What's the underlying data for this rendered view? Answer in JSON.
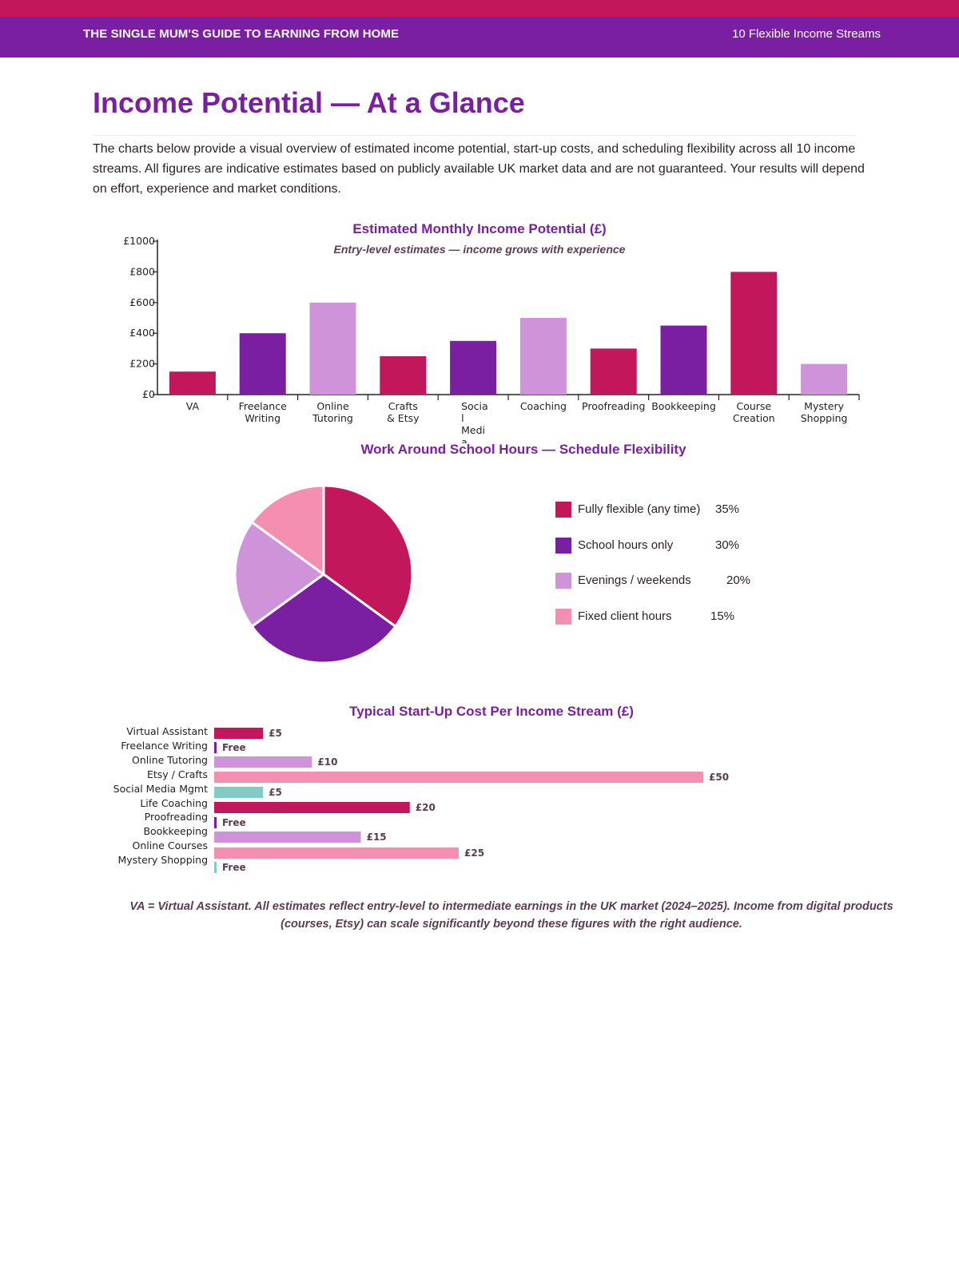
{
  "header": {
    "left_title": "THE SINGLE MUM'S GUIDE TO EARNING FROM HOME",
    "right_title": "10 Flexible Income Streams"
  },
  "page": {
    "title": "Income Potential — At a Glance",
    "intro": "The charts below provide a visual overview of estimated income potential, start-up costs, and scheduling flexibility across all 10 income streams. All figures are indicative estimates based on publicly available UK market data and are not guaranteed. Your results will depend on effort, experience and market conditions.",
    "footnote": "VA = Virtual Assistant. All estimates reflect entry-level to intermediate earnings in the UK market (2024–2025). Income from digital products (courses, Etsy) can scale significantly beyond these figures with the right audience."
  },
  "colors": {
    "crimson": "#c2185b",
    "purple": "#7b1fa2",
    "lilac": "#ce93d8",
    "pink": "#f48fb1",
    "teal": "#80cbc4"
  },
  "chart_data": [
    {
      "type": "bar",
      "title": "Estimated Monthly Income Potential (£)",
      "subtitle": "Entry-level estimates — income grows with experience",
      "categories": [
        "VA",
        "Freelance Writing",
        "Online Tutoring",
        "Crafts & Etsy",
        "Social Media",
        "Coaching",
        "Proofreading",
        "Bookkeeping",
        "Course Creation",
        "Mystery Shopping"
      ],
      "category_lines": [
        [
          "VA"
        ],
        [
          "Freelance",
          "Writing"
        ],
        [
          "Online",
          "Tutoring"
        ],
        [
          "Crafts",
          "& Etsy"
        ],
        [
          "Socia",
          "l",
          "Medi",
          "a"
        ],
        [
          "Coaching"
        ],
        [
          "Proofreading"
        ],
        [
          "Bookkeeping"
        ],
        [
          "Course",
          "Creation"
        ],
        [
          "Mystery",
          "Shopping"
        ]
      ],
      "values": [
        150,
        400,
        600,
        250,
        350,
        500,
        300,
        450,
        800,
        200
      ],
      "bar_colors": [
        "#c2185b",
        "#7b1fa2",
        "#ce93d8",
        "#c2185b",
        "#7b1fa2",
        "#ce93d8",
        "#c2185b",
        "#7b1fa2",
        "#c2185b",
        "#ce93d8"
      ],
      "y_ticks": [
        "£0",
        "£200",
        "£400",
        "£600",
        "£800",
        "£1000"
      ],
      "ylim": [
        0,
        1000
      ],
      "grid": false
    },
    {
      "type": "pie",
      "title": "Work Around School Hours — Schedule Flexibility",
      "labels": [
        "Fully flexible (any time)",
        "School hours only",
        "Evenings / weekends",
        "Fixed client hours"
      ],
      "values": [
        35,
        30,
        20,
        15
      ],
      "value_labels": [
        "35%",
        "30%",
        "20%",
        "15%"
      ],
      "slice_colors": [
        "#c2185b",
        "#7b1fa2",
        "#ce93d8",
        "#f48fb1"
      ],
      "legend_position": "right"
    },
    {
      "type": "bar",
      "orientation": "horizontal",
      "title": "Typical Start-Up Cost Per Income Stream (£)",
      "categories": [
        "Virtual Assistant",
        "Freelance Writing",
        "Online Tutoring",
        "Etsy / Crafts",
        "Social Media Mgmt",
        "Life Coaching",
        "Proofreading",
        "Bookkeeping",
        "Online Courses",
        "Mystery Shopping"
      ],
      "values": [
        5,
        0,
        10,
        50,
        5,
        20,
        0,
        15,
        25,
        0
      ],
      "value_labels": [
        "£5",
        "Free",
        "£10",
        "£50",
        "£5",
        "£20",
        "Free",
        "£15",
        "£25",
        "Free"
      ],
      "bar_colors": [
        "#c2185b",
        "#7b1fa2",
        "#ce93d8",
        "#f48fb1",
        "#80cbc4",
        "#c2185b",
        "#7b1fa2",
        "#ce93d8",
        "#f48fb1",
        "#80cbc4"
      ],
      "xlim": [
        0,
        50
      ]
    }
  ]
}
